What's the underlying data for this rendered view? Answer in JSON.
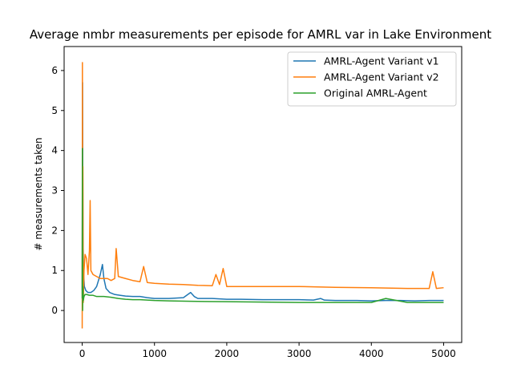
{
  "chart_data": {
    "type": "line",
    "title": "Average nmbr measurements per episode for AMRL var in Lake Environment",
    "xlabel": "",
    "ylabel": "# measurements taken",
    "xlim": [
      -250,
      5250
    ],
    "ylim": [
      -0.8,
      6.6
    ],
    "xticks": [
      0,
      1000,
      2000,
      3000,
      4000,
      5000
    ],
    "yticks": [
      0,
      1,
      2,
      3,
      4,
      5,
      6
    ],
    "grid": false,
    "legend_position": "top-right",
    "series": [
      {
        "name": "AMRL-Agent Variant v1",
        "color": "#1f77b4",
        "x": [
          0,
          5,
          10,
          20,
          30,
          50,
          80,
          120,
          160,
          200,
          250,
          280,
          300,
          330,
          380,
          450,
          520,
          600,
          700,
          800,
          900,
          1000,
          1200,
          1400,
          1500,
          1550,
          1600,
          1800,
          2000,
          2200,
          2500,
          2800,
          3000,
          3200,
          3300,
          3350,
          3500,
          3800,
          4000,
          4200,
          4400,
          4600,
          4800,
          5000
        ],
        "y": [
          0.5,
          5.7,
          1.9,
          0.9,
          0.6,
          0.5,
          0.45,
          0.45,
          0.5,
          0.6,
          0.9,
          1.15,
          0.8,
          0.55,
          0.45,
          0.4,
          0.38,
          0.36,
          0.35,
          0.35,
          0.32,
          0.3,
          0.3,
          0.32,
          0.45,
          0.35,
          0.3,
          0.3,
          0.28,
          0.28,
          0.27,
          0.27,
          0.27,
          0.26,
          0.3,
          0.26,
          0.25,
          0.25,
          0.24,
          0.25,
          0.25,
          0.24,
          0.25,
          0.25
        ]
      },
      {
        "name": "AMRL-Agent Variant v2",
        "color": "#ff7f0e",
        "x": [
          0,
          3,
          6,
          10,
          15,
          25,
          40,
          60,
          80,
          100,
          110,
          120,
          150,
          200,
          250,
          300,
          350,
          400,
          450,
          470,
          500,
          600,
          700,
          800,
          850,
          900,
          1000,
          1200,
          1400,
          1600,
          1800,
          1850,
          1900,
          1950,
          2000,
          2200,
          2500,
          2800,
          3000,
          3500,
          4000,
          4500,
          4800,
          4850,
          4900,
          5000
        ],
        "y": [
          -0.45,
          6.2,
          1.2,
          3.6,
          0.2,
          1.0,
          1.4,
          1.3,
          0.9,
          1.5,
          2.75,
          1.0,
          0.9,
          0.85,
          0.8,
          0.8,
          0.8,
          0.75,
          0.8,
          1.55,
          0.85,
          0.8,
          0.75,
          0.72,
          1.1,
          0.7,
          0.68,
          0.66,
          0.65,
          0.63,
          0.62,
          0.9,
          0.65,
          1.05,
          0.6,
          0.6,
          0.6,
          0.6,
          0.6,
          0.58,
          0.57,
          0.55,
          0.55,
          0.97,
          0.55,
          0.57
        ]
      },
      {
        "name": "Original AMRL-Agent",
        "color": "#2ca02c",
        "x": [
          0,
          3,
          6,
          10,
          15,
          25,
          40,
          60,
          100,
          150,
          200,
          300,
          400,
          500,
          600,
          700,
          800,
          1000,
          1200,
          1500,
          2000,
          2500,
          3000,
          3500,
          4000,
          4200,
          4500,
          5000
        ],
        "y": [
          0.3,
          4.05,
          0.0,
          0.6,
          0.25,
          0.35,
          0.4,
          0.4,
          0.38,
          0.38,
          0.35,
          0.35,
          0.33,
          0.3,
          0.28,
          0.27,
          0.27,
          0.25,
          0.24,
          0.23,
          0.22,
          0.21,
          0.2,
          0.2,
          0.2,
          0.3,
          0.2,
          0.2
        ]
      }
    ]
  }
}
